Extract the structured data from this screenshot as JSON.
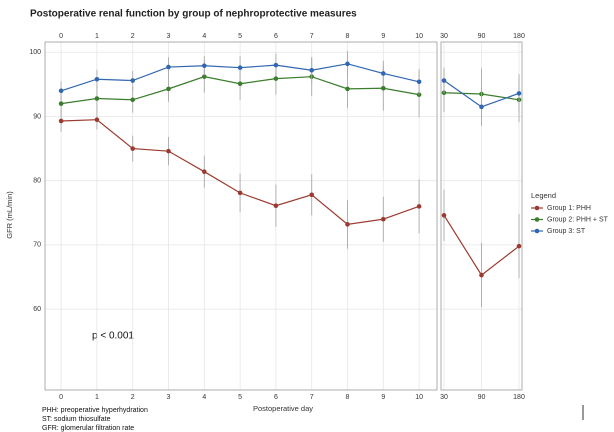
{
  "chart_data": [
    {
      "type": "line",
      "title": "Postoperative renal function by group of nephroprotective measures",
      "x_label": "Postoperative day",
      "y_label": "GFR (mL/min)",
      "annotation": "p < 0.001",
      "legend_title": "Legend",
      "footnotes": [
        "PHH: preoperative hyperhydration",
        "ST: sodium thiosulfate",
        "GFR: glomerular filtration rate"
      ],
      "x": [
        0,
        1,
        2,
        3,
        4,
        5,
        6,
        7,
        8,
        9,
        10
      ],
      "xlim": [
        -0.45,
        10.5
      ],
      "xticks": [
        0,
        1,
        2,
        3,
        4,
        5,
        6,
        7,
        8,
        9,
        10
      ],
      "ylim": [
        47.4,
        101.6
      ],
      "yticks": [
        60,
        70,
        80,
        90,
        100
      ],
      "grid": true,
      "series": [
        {
          "name": "Group 1: PHH",
          "color": "#9b3a2f",
          "values": [
            89.3,
            89.5,
            85,
            84.6,
            81.4,
            78.1,
            76.1,
            77.8,
            73.2,
            74,
            76
          ],
          "errors": [
            1.7,
            1.5,
            2,
            2.2,
            2.5,
            3,
            3.3,
            3.2,
            3.8,
            3.5,
            4.2
          ]
        },
        {
          "name": "Group 2: PHH + ST",
          "color": "#3a7d2c",
          "values": [
            92,
            92.8,
            92.6,
            94.3,
            96.2,
            95.1,
            95.9,
            96.2,
            94.3,
            94.4,
            93.4
          ],
          "errors": [
            2,
            2,
            2,
            2,
            2.5,
            2.5,
            2.5,
            3,
            3,
            3.5,
            3.5
          ]
        },
        {
          "name": "Group 3: ST",
          "color": "#3166b0",
          "values": [
            94,
            95.8,
            95.6,
            97.7,
            97.9,
            97.6,
            98,
            97.2,
            98.2,
            96.7,
            95.4
          ],
          "errors": [
            1.5,
            1.5,
            1.5,
            1.5,
            1.5,
            1.8,
            1.8,
            2,
            2,
            2,
            2
          ]
        }
      ]
    },
    {
      "type": "line",
      "categories": [
        "30",
        "90",
        "180"
      ],
      "ylim": [
        47.4,
        101.6
      ],
      "yticks": [
        60,
        70,
        80,
        90,
        100
      ],
      "grid": true,
      "series": [
        {
          "color": "#9b3a2f",
          "values": [
            74.6,
            65.3,
            69.8
          ],
          "errors": [
            4,
            5,
            5
          ]
        },
        {
          "color": "#3a7d2c",
          "values": [
            93.7,
            93.5,
            92.6
          ],
          "errors": [
            3,
            4,
            3.5
          ]
        },
        {
          "color": "#3166b0",
          "values": [
            95.6,
            91.5,
            93.6
          ],
          "errors": [
            2,
            3,
            3
          ]
        }
      ]
    }
  ]
}
